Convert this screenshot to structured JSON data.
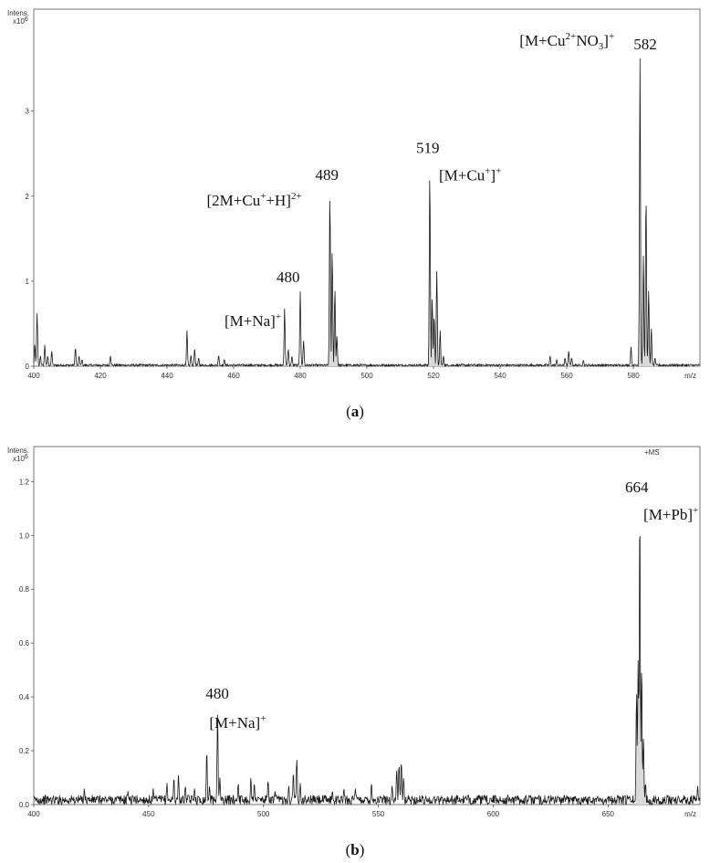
{
  "chart_data": [
    {
      "panel": "a",
      "type": "line",
      "caption_label": "a",
      "y_axis_label_top": "Intens.",
      "y_axis_label_bottom": "x10",
      "y_axis_label_exp": "6",
      "x_axis_unit": "m/z",
      "ms_mode": "",
      "xlim": [
        400,
        600
      ],
      "ylim": [
        0,
        4.2
      ],
      "x_ticks": [
        400,
        420,
        440,
        460,
        480,
        500,
        520,
        540,
        560,
        580
      ],
      "y_ticks": [
        0,
        1,
        2,
        3
      ],
      "peaks": [
        {
          "x": 400.3,
          "y": 0.25
        },
        {
          "x": 401.0,
          "y": 0.62
        },
        {
          "x": 402.0,
          "y": 0.12
        },
        {
          "x": 403.3,
          "y": 0.25
        },
        {
          "x": 404.2,
          "y": 0.12
        },
        {
          "x": 405.4,
          "y": 0.18
        },
        {
          "x": 412.5,
          "y": 0.22
        },
        {
          "x": 413.6,
          "y": 0.12
        },
        {
          "x": 414.5,
          "y": 0.08
        },
        {
          "x": 423.0,
          "y": 0.12
        },
        {
          "x": 446.0,
          "y": 0.42
        },
        {
          "x": 447.2,
          "y": 0.13
        },
        {
          "x": 448.3,
          "y": 0.2
        },
        {
          "x": 449.5,
          "y": 0.1
        },
        {
          "x": 455.5,
          "y": 0.13
        },
        {
          "x": 457.2,
          "y": 0.08
        },
        {
          "x": 475.3,
          "y": 0.68
        },
        {
          "x": 476.4,
          "y": 0.2
        },
        {
          "x": 477.5,
          "y": 0.12
        },
        {
          "x": 480.0,
          "y": 0.88
        },
        {
          "x": 481.0,
          "y": 0.3
        },
        {
          "x": 488.9,
          "y": 2.02
        },
        {
          "x": 489.6,
          "y": 1.35
        },
        {
          "x": 490.4,
          "y": 0.9
        },
        {
          "x": 491.0,
          "y": 0.35
        },
        {
          "x": 518.9,
          "y": 2.27
        },
        {
          "x": 519.6,
          "y": 0.8
        },
        {
          "x": 520.2,
          "y": 0.6
        },
        {
          "x": 521.0,
          "y": 1.12
        },
        {
          "x": 522.0,
          "y": 0.42
        },
        {
          "x": 523.0,
          "y": 0.12
        },
        {
          "x": 555.0,
          "y": 0.12
        },
        {
          "x": 557.0,
          "y": 0.08
        },
        {
          "x": 559.5,
          "y": 0.1
        },
        {
          "x": 560.6,
          "y": 0.18
        },
        {
          "x": 561.5,
          "y": 0.1
        },
        {
          "x": 565.0,
          "y": 0.07
        },
        {
          "x": 579.3,
          "y": 0.23
        },
        {
          "x": 582.0,
          "y": 3.62
        },
        {
          "x": 583.0,
          "y": 1.3
        },
        {
          "x": 583.8,
          "y": 2.02
        },
        {
          "x": 584.6,
          "y": 0.9
        },
        {
          "x": 585.4,
          "y": 0.45
        },
        {
          "x": 586.5,
          "y": 0.1
        }
      ],
      "filled_ranges": [
        [
          488.3,
          491.5
        ],
        [
          518.3,
          523.5
        ],
        [
          581.3,
          587.0
        ]
      ],
      "annotations": [
        {
          "label": "582",
          "x": 582.0,
          "y": 3.62,
          "ion_parts": [
            "[M+Cu",
            "2+",
            "NO",
            "3",
            "]",
            "+"
          ]
        },
        {
          "label": "519",
          "x": 518.9,
          "y": 2.27,
          "ion_parts": [
            "[M+Cu",
            "+",
            "]",
            "+"
          ]
        },
        {
          "label": "489",
          "x": 488.9,
          "y": 2.02,
          "ion_parts": [
            "[2M+Cu",
            "+",
            "+H]",
            "2+"
          ]
        },
        {
          "label": "480",
          "x": 480.0,
          "y": 0.88,
          "ion_parts": [
            "[M+Na]",
            "+"
          ]
        }
      ]
    },
    {
      "panel": "b",
      "type": "line",
      "caption_label": "b",
      "y_axis_label_top": "Intens.",
      "y_axis_label_bottom": "x10",
      "y_axis_label_exp": "6",
      "x_axis_unit": "m/z",
      "ms_mode": "+MS",
      "xlim": [
        400,
        690
      ],
      "ylim": [
        0,
        1.33
      ],
      "x_ticks": [
        400,
        450,
        500,
        550,
        600,
        650
      ],
      "y_ticks": [
        0.0,
        0.2,
        0.4,
        0.6,
        0.8,
        1.0,
        1.2
      ],
      "peaks": [
        {
          "x": 422.0,
          "y": 0.06
        },
        {
          "x": 441.0,
          "y": 0.05
        },
        {
          "x": 452.0,
          "y": 0.06
        },
        {
          "x": 458.0,
          "y": 0.08
        },
        {
          "x": 461.0,
          "y": 0.1
        },
        {
          "x": 463.0,
          "y": 0.11
        },
        {
          "x": 466.0,
          "y": 0.07
        },
        {
          "x": 470.0,
          "y": 0.06
        },
        {
          "x": 475.3,
          "y": 0.2
        },
        {
          "x": 476.5,
          "y": 0.07
        },
        {
          "x": 480.0,
          "y": 0.34
        },
        {
          "x": 481.0,
          "y": 0.1
        },
        {
          "x": 489.0,
          "y": 0.08
        },
        {
          "x": 494.5,
          "y": 0.1
        },
        {
          "x": 496.0,
          "y": 0.08
        },
        {
          "x": 502.0,
          "y": 0.09
        },
        {
          "x": 505.0,
          "y": 0.05
        },
        {
          "x": 511.0,
          "y": 0.07
        },
        {
          "x": 513.0,
          "y": 0.12
        },
        {
          "x": 514.5,
          "y": 0.17
        },
        {
          "x": 516.0,
          "y": 0.08
        },
        {
          "x": 530.0,
          "y": 0.05
        },
        {
          "x": 535.0,
          "y": 0.06
        },
        {
          "x": 540.0,
          "y": 0.06
        },
        {
          "x": 547.0,
          "y": 0.08
        },
        {
          "x": 556.0,
          "y": 0.07
        },
        {
          "x": 558.0,
          "y": 0.13
        },
        {
          "x": 559.0,
          "y": 0.15
        },
        {
          "x": 560.0,
          "y": 0.16
        },
        {
          "x": 561.0,
          "y": 0.1
        },
        {
          "x": 631.0,
          "y": 0.03
        },
        {
          "x": 662.4,
          "y": 0.42
        },
        {
          "x": 663.1,
          "y": 0.54
        },
        {
          "x": 663.8,
          "y": 1.1
        },
        {
          "x": 664.6,
          "y": 0.52
        },
        {
          "x": 665.4,
          "y": 0.25
        },
        {
          "x": 666.3,
          "y": 0.08
        },
        {
          "x": 689.0,
          "y": 0.07
        }
      ],
      "filled_ranges": [
        [
          661.9,
          666.8
        ]
      ],
      "annotations": [
        {
          "label": "664",
          "x": 663.8,
          "y": 1.1,
          "ion_parts": [
            "[M+Pb]",
            "+"
          ]
        },
        {
          "label": "480",
          "x": 480.0,
          "y": 0.34,
          "ion_parts": [
            "[M+Na]",
            "+"
          ]
        }
      ]
    }
  ]
}
